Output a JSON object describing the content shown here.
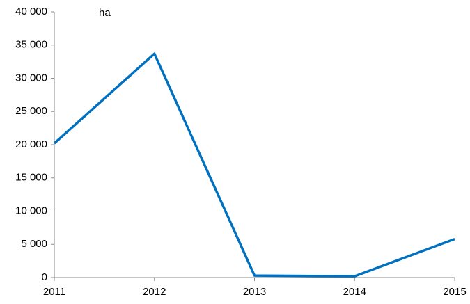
{
  "chart_data": {
    "type": "line",
    "annotation": "ha",
    "categories": [
      "2011",
      "2012",
      "2013",
      "2014",
      "2015"
    ],
    "series": [
      {
        "name": "ha",
        "color": "#0070c0",
        "values": [
          20200,
          33700,
          300,
          200,
          5800
        ]
      }
    ],
    "ylim": [
      0,
      40000
    ],
    "yticks": [
      0,
      {
        "value": 5000,
        "label": "5 000"
      },
      {
        "value": 10000,
        "label": "10 000"
      },
      {
        "value": 15000,
        "label": "15 000"
      },
      {
        "value": 20000,
        "label": "20 000"
      },
      {
        "value": 25000,
        "label": "25 000"
      },
      {
        "value": 30000,
        "label": "30 000"
      },
      {
        "value": 35000,
        "label": "35 000"
      },
      {
        "value": 40000,
        "label": "40 000"
      }
    ],
    "grid": false
  }
}
